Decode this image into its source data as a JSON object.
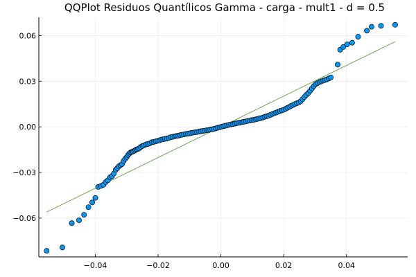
{
  "chart_data": {
    "type": "scatter",
    "title": "QQPlot Residuos Quantílicos Gamma - carga - mult1 - d = 0.5",
    "xlabel": "",
    "ylabel": "",
    "xlim": [
      -0.058,
      0.0595
    ],
    "ylim": [
      -0.0855,
      0.072
    ],
    "x_ticks": [
      -0.04,
      -0.02,
      0.0,
      0.02,
      0.04
    ],
    "x_tick_labels": [
      "−0.04",
      "−0.02",
      "0.00",
      "0.02",
      "0.04"
    ],
    "y_ticks": [
      -0.06,
      -0.03,
      0.0,
      0.03,
      0.06
    ],
    "y_tick_labels": [
      "−0.06",
      "−0.03",
      "0.00",
      "0.03",
      "0.06"
    ],
    "grid": true,
    "legend": "none",
    "colors": {
      "points": "#009AFA",
      "point_stroke": "#000000",
      "reference_line": "#6AA84F"
    },
    "reference_line": {
      "x": [
        -0.0555,
        0.0555
      ],
      "y": [
        -0.056,
        0.056
      ]
    },
    "series": [
      {
        "x": [
          -0.0555,
          -0.0505,
          -0.0475,
          -0.0452,
          -0.0436,
          -0.0422,
          -0.041,
          -0.04,
          -0.0391,
          -0.0382,
          -0.0374,
          -0.0367,
          -0.036,
          -0.0353,
          -0.0347,
          -0.0341,
          -0.0335,
          -0.033,
          -0.0325,
          -0.032,
          -0.0315,
          -0.031,
          -0.0305,
          -0.03,
          -0.0296,
          -0.0292,
          -0.0288,
          -0.0284,
          -0.028,
          -0.0276,
          -0.0272,
          -0.0268,
          -0.0264,
          -0.026,
          -0.0255,
          -0.025,
          -0.0244,
          -0.0238,
          -0.0232,
          -0.0226,
          -0.022,
          -0.0214,
          -0.0208,
          -0.0202,
          -0.0196,
          -0.019,
          -0.0184,
          -0.0178,
          -0.0172,
          -0.0166,
          -0.016,
          -0.0154,
          -0.0148,
          -0.0142,
          -0.0136,
          -0.013,
          -0.0124,
          -0.0118,
          -0.0112,
          -0.0106,
          -0.01,
          -0.0094,
          -0.0088,
          -0.0082,
          -0.0076,
          -0.007,
          -0.0064,
          -0.0058,
          -0.0052,
          -0.0046,
          -0.004,
          -0.0034,
          -0.0028,
          -0.0022,
          -0.0016,
          -0.001,
          -0.0004,
          0.0002,
          0.0008,
          0.0014,
          0.002,
          0.0026,
          0.0032,
          0.0038,
          0.0044,
          0.005,
          0.0056,
          0.0062,
          0.0068,
          0.0074,
          0.008,
          0.0086,
          0.0092,
          0.0098,
          0.0104,
          0.011,
          0.0116,
          0.0122,
          0.0128,
          0.0134,
          0.014,
          0.0146,
          0.0152,
          0.0158,
          0.0164,
          0.017,
          0.0176,
          0.0182,
          0.0188,
          0.0194,
          0.02,
          0.0206,
          0.0212,
          0.0218,
          0.0224,
          0.023,
          0.0236,
          0.0242,
          0.0248,
          0.0254,
          0.026,
          0.0266,
          0.0272,
          0.0278,
          0.0284,
          0.029,
          0.0296,
          0.0302,
          0.0308,
          0.0314,
          0.032,
          0.0326,
          0.0332,
          0.0338,
          0.0344,
          0.035,
          0.0372,
          0.038,
          0.039,
          0.0402,
          0.0418,
          0.0437,
          0.0465,
          0.048,
          0.051,
          0.0555
        ],
        "y": [
          -0.0815,
          -0.0793,
          -0.0633,
          -0.0614,
          -0.0578,
          -0.0528,
          -0.0497,
          -0.0467,
          -0.0395,
          -0.0388,
          -0.0381,
          -0.0363,
          -0.0351,
          -0.0332,
          -0.0324,
          -0.0307,
          -0.0282,
          -0.0272,
          -0.0259,
          -0.0252,
          -0.0245,
          -0.0225,
          -0.021,
          -0.0199,
          -0.0186,
          -0.0176,
          -0.0168,
          -0.0165,
          -0.0162,
          -0.0158,
          -0.0152,
          -0.0148,
          -0.0145,
          -0.0141,
          -0.0132,
          -0.0126,
          -0.0121,
          -0.0115,
          -0.0112,
          -0.0108,
          -0.0101,
          -0.0099,
          -0.0096,
          -0.0092,
          -0.0089,
          -0.0084,
          -0.0082,
          -0.0079,
          -0.0076,
          -0.0073,
          -0.0068,
          -0.0066,
          -0.0063,
          -0.006,
          -0.0058,
          -0.0055,
          -0.0052,
          -0.005,
          -0.0047,
          -0.0045,
          -0.0043,
          -0.004,
          -0.0038,
          -0.0036,
          -0.0034,
          -0.0031,
          -0.0029,
          -0.0027,
          -0.0025,
          -0.0023,
          -0.0021,
          -0.0018,
          -0.0016,
          -0.0013,
          -0.001,
          -0.0006,
          -0.0003,
          0.0001,
          0.0004,
          0.0007,
          0.001,
          0.0013,
          0.0016,
          0.0018,
          0.0021,
          0.0024,
          0.0026,
          0.0029,
          0.0031,
          0.0034,
          0.0036,
          0.0039,
          0.0041,
          0.0044,
          0.0046,
          0.0049,
          0.0052,
          0.0055,
          0.0058,
          0.0062,
          0.0066,
          0.007,
          0.0074,
          0.0079,
          0.0084,
          0.0089,
          0.0094,
          0.0099,
          0.0104,
          0.0108,
          0.0112,
          0.0118,
          0.0125,
          0.0131,
          0.0138,
          0.0144,
          0.015,
          0.0155,
          0.016,
          0.0168,
          0.0182,
          0.0196,
          0.021,
          0.0222,
          0.0236,
          0.0252,
          0.0268,
          0.0281,
          0.0288,
          0.0294,
          0.0299,
          0.0304,
          0.0308,
          0.0312,
          0.0318,
          0.0325,
          0.0409,
          0.0507,
          0.0525,
          0.0542,
          0.0553,
          0.0592,
          0.0632,
          0.0658,
          0.0664,
          0.0671
        ]
      }
    ]
  }
}
